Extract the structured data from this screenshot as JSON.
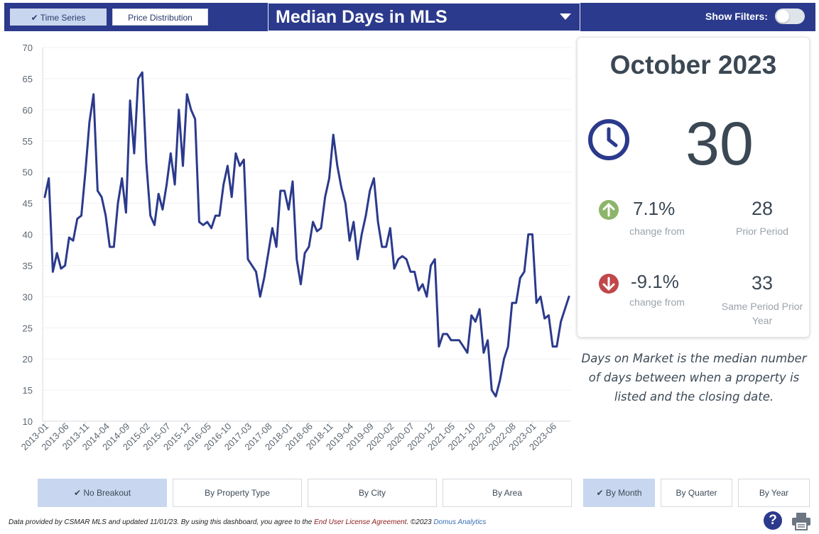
{
  "toolbar": {
    "time_series_label": "Time Series",
    "price_distribution_label": "Price Distribution",
    "metric_title": "Median Days in MLS",
    "show_filters_label": "Show Filters:",
    "show_filters_on": false
  },
  "chart_data": {
    "type": "line",
    "title": "",
    "xlabel": "",
    "ylabel": "",
    "ylim": [
      10,
      70
    ],
    "yticks": [
      10,
      15,
      20,
      25,
      30,
      35,
      40,
      45,
      50,
      55,
      60,
      65,
      70
    ],
    "grid": true,
    "line_color": "#2b3a8c",
    "x_tick_labels": [
      "2013-01",
      "2013-06",
      "2013-11",
      "2014-04",
      "2014-09",
      "2015-02",
      "2015-07",
      "2015-12",
      "2016-05",
      "2016-10",
      "2017-03",
      "2017-08",
      "2018-01",
      "2018-06",
      "2018-11",
      "2019-04",
      "2019-09",
      "2020-02",
      "2020-07",
      "2020-12",
      "2021-05",
      "2021-10",
      "2022-03",
      "2022-08",
      "2023-01",
      "2023-06"
    ],
    "start": "2013-01",
    "series": [
      {
        "values": [
          46,
          49,
          34,
          37,
          34.5,
          35,
          39.5,
          39,
          42.5,
          43,
          50,
          58,
          62.5,
          47,
          46,
          43,
          38,
          38,
          45,
          49,
          43.5,
          61.5,
          53,
          65,
          66,
          51.5,
          43,
          41.5,
          46.5,
          44,
          48,
          53,
          48,
          60,
          51,
          62.5,
          60,
          58.5,
          42,
          41.5,
          42,
          41,
          43,
          43,
          48,
          51,
          46,
          53,
          51,
          52,
          36,
          35,
          34,
          30,
          33,
          37,
          41,
          38,
          47,
          47,
          44,
          48.5,
          36,
          32,
          37,
          38,
          42,
          40.5,
          41,
          46,
          49,
          56,
          51,
          47.5,
          45,
          39,
          42,
          36,
          40,
          43,
          47,
          49,
          42,
          38,
          38,
          41,
          34.5,
          36,
          36.5,
          36,
          34,
          34,
          31,
          32,
          30,
          35,
          36,
          22,
          24,
          24,
          23,
          23,
          23,
          22,
          21,
          27,
          26,
          28,
          21,
          23,
          15,
          14,
          16.5,
          20,
          22,
          29,
          29,
          33,
          34,
          40,
          40,
          29,
          30,
          26.5,
          27,
          22,
          22,
          26,
          28,
          30
        ]
      }
    ]
  },
  "summary": {
    "period": "October 2023",
    "value": "30",
    "clock_icon": "clock-icon",
    "change1_pct": "7.1%",
    "change1_label": "change from",
    "change1_direction": "up",
    "change1_color": "#8cb56b",
    "prior_value": "28",
    "prior_label": "Prior Period",
    "change2_pct": "-9.1%",
    "change2_label": "change from",
    "change2_direction": "down",
    "change2_color": "#c0474a",
    "same_period_value": "33",
    "same_period_label": "Same Period Prior Year"
  },
  "note": "Days on Market is the median number of days between when a property is listed and the closing date.",
  "breakouts": [
    "No Breakout",
    "By Property Type",
    "By City",
    "By Area"
  ],
  "breakout_selected": "No Breakout",
  "intervals": [
    "By Month",
    "By Quarter",
    "By Year"
  ],
  "interval_selected": "By Month",
  "footer": {
    "text": "Data provided by CSMAR MLS and updated 11/01/23.  By using this dashboard, you agree to the",
    "license_link": "End User License Agreement",
    "copyright": ".  ©2023",
    "brand": "Domus Analytics"
  },
  "icons": {
    "help": "help-icon",
    "print": "print-icon",
    "check": "check-icon"
  }
}
